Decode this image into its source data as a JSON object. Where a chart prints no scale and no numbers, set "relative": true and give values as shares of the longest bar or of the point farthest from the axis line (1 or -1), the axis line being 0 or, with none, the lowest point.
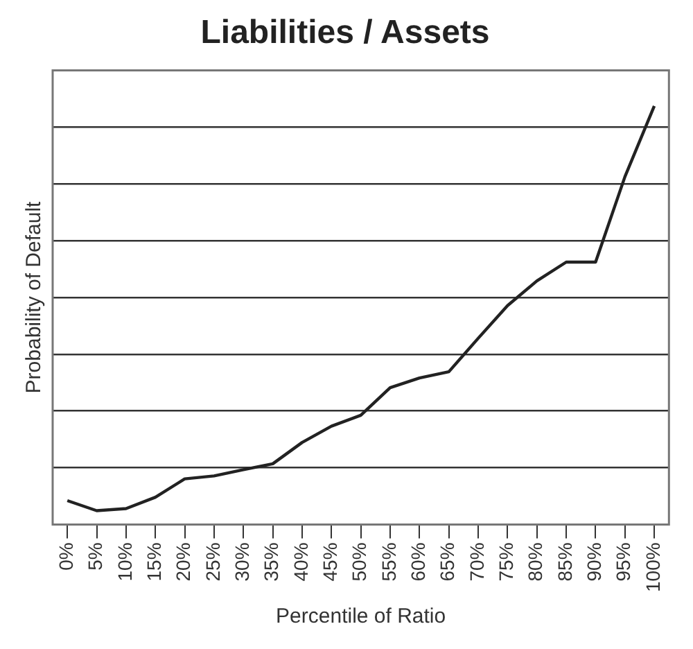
{
  "chart_data": {
    "type": "line",
    "title": "Liabilities / Assets",
    "xlabel": "Percentile of Ratio",
    "ylabel": "Probability of Default",
    "relative": true,
    "grid": "y",
    "legend": false,
    "marker": "none",
    "line_style": "solid",
    "categories": [
      "0%",
      "5%",
      "10%",
      "15%",
      "20%",
      "25%",
      "30%",
      "35%",
      "40%",
      "45%",
      "50%",
      "55%",
      "60%",
      "65%",
      "70%",
      "75%",
      "80%",
      "85%",
      "90%",
      "95%",
      "100%"
    ],
    "series": [
      {
        "color": "#222222",
        "values": [
          0.057,
          0.033,
          0.038,
          0.065,
          0.109,
          0.116,
          0.131,
          0.145,
          0.196,
          0.235,
          0.261,
          0.327,
          0.35,
          0.365,
          0.445,
          0.523,
          0.582,
          0.627,
          0.627,
          0.831,
          1
        ]
      }
    ]
  }
}
